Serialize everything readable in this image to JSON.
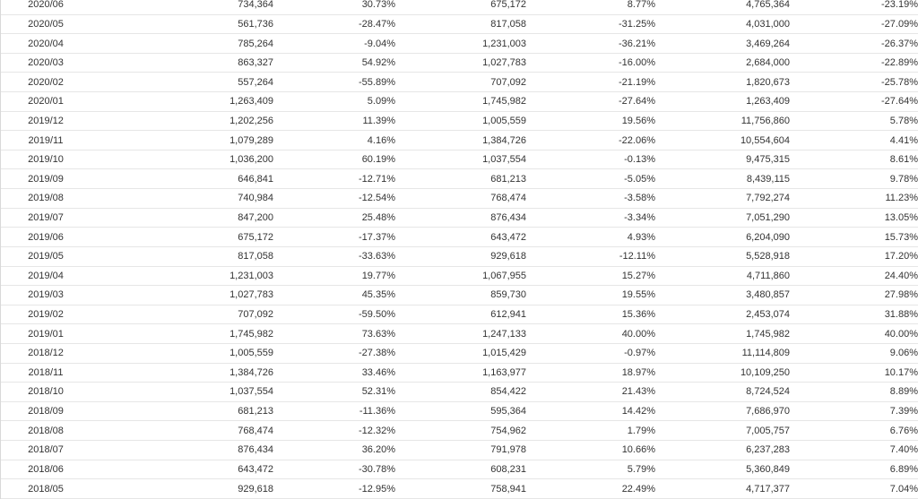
{
  "table": {
    "rows": [
      [
        "2020/06",
        "734,364",
        "30.73%",
        "675,172",
        "8.77%",
        "4,765,364",
        "-23.19%"
      ],
      [
        "2020/05",
        "561,736",
        "-28.47%",
        "817,058",
        "-31.25%",
        "4,031,000",
        "-27.09%"
      ],
      [
        "2020/04",
        "785,264",
        "-9.04%",
        "1,231,003",
        "-36.21%",
        "3,469,264",
        "-26.37%"
      ],
      [
        "2020/03",
        "863,327",
        "54.92%",
        "1,027,783",
        "-16.00%",
        "2,684,000",
        "-22.89%"
      ],
      [
        "2020/02",
        "557,264",
        "-55.89%",
        "707,092",
        "-21.19%",
        "1,820,673",
        "-25.78%"
      ],
      [
        "2020/01",
        "1,263,409",
        "5.09%",
        "1,745,982",
        "-27.64%",
        "1,263,409",
        "-27.64%"
      ],
      [
        "2019/12",
        "1,202,256",
        "11.39%",
        "1,005,559",
        "19.56%",
        "11,756,860",
        "5.78%"
      ],
      [
        "2019/11",
        "1,079,289",
        "4.16%",
        "1,384,726",
        "-22.06%",
        "10,554,604",
        "4.41%"
      ],
      [
        "2019/10",
        "1,036,200",
        "60.19%",
        "1,037,554",
        "-0.13%",
        "9,475,315",
        "8.61%"
      ],
      [
        "2019/09",
        "646,841",
        "-12.71%",
        "681,213",
        "-5.05%",
        "8,439,115",
        "9.78%"
      ],
      [
        "2019/08",
        "740,984",
        "-12.54%",
        "768,474",
        "-3.58%",
        "7,792,274",
        "11.23%"
      ],
      [
        "2019/07",
        "847,200",
        "25.48%",
        "876,434",
        "-3.34%",
        "7,051,290",
        "13.05%"
      ],
      [
        "2019/06",
        "675,172",
        "-17.37%",
        "643,472",
        "4.93%",
        "6,204,090",
        "15.73%"
      ],
      [
        "2019/05",
        "817,058",
        "-33.63%",
        "929,618",
        "-12.11%",
        "5,528,918",
        "17.20%"
      ],
      [
        "2019/04",
        "1,231,003",
        "19.77%",
        "1,067,955",
        "15.27%",
        "4,711,860",
        "24.40%"
      ],
      [
        "2019/03",
        "1,027,783",
        "45.35%",
        "859,730",
        "19.55%",
        "3,480,857",
        "27.98%"
      ],
      [
        "2019/02",
        "707,092",
        "-59.50%",
        "612,941",
        "15.36%",
        "2,453,074",
        "31.88%"
      ],
      [
        "2019/01",
        "1,745,982",
        "73.63%",
        "1,247,133",
        "40.00%",
        "1,745,982",
        "40.00%"
      ],
      [
        "2018/12",
        "1,005,559",
        "-27.38%",
        "1,015,429",
        "-0.97%",
        "11,114,809",
        "9.06%"
      ],
      [
        "2018/11",
        "1,384,726",
        "33.46%",
        "1,163,977",
        "18.97%",
        "10,109,250",
        "10.17%"
      ],
      [
        "2018/10",
        "1,037,554",
        "52.31%",
        "854,422",
        "21.43%",
        "8,724,524",
        "8.89%"
      ],
      [
        "2018/09",
        "681,213",
        "-11.36%",
        "595,364",
        "14.42%",
        "7,686,970",
        "7.39%"
      ],
      [
        "2018/08",
        "768,474",
        "-12.32%",
        "754,962",
        "1.79%",
        "7,005,757",
        "6.76%"
      ],
      [
        "2018/07",
        "876,434",
        "36.20%",
        "791,978",
        "10.66%",
        "6,237,283",
        "7.40%"
      ],
      [
        "2018/06",
        "643,472",
        "-30.78%",
        "608,231",
        "5.79%",
        "5,360,849",
        "6.89%"
      ],
      [
        "2018/05",
        "929,618",
        "-12.95%",
        "758,941",
        "22.49%",
        "4,717,377",
        "7.04%"
      ]
    ],
    "colors": {
      "text": "#333333",
      "negative": "#e4393c",
      "row_border": "#e6e6e6"
    }
  }
}
